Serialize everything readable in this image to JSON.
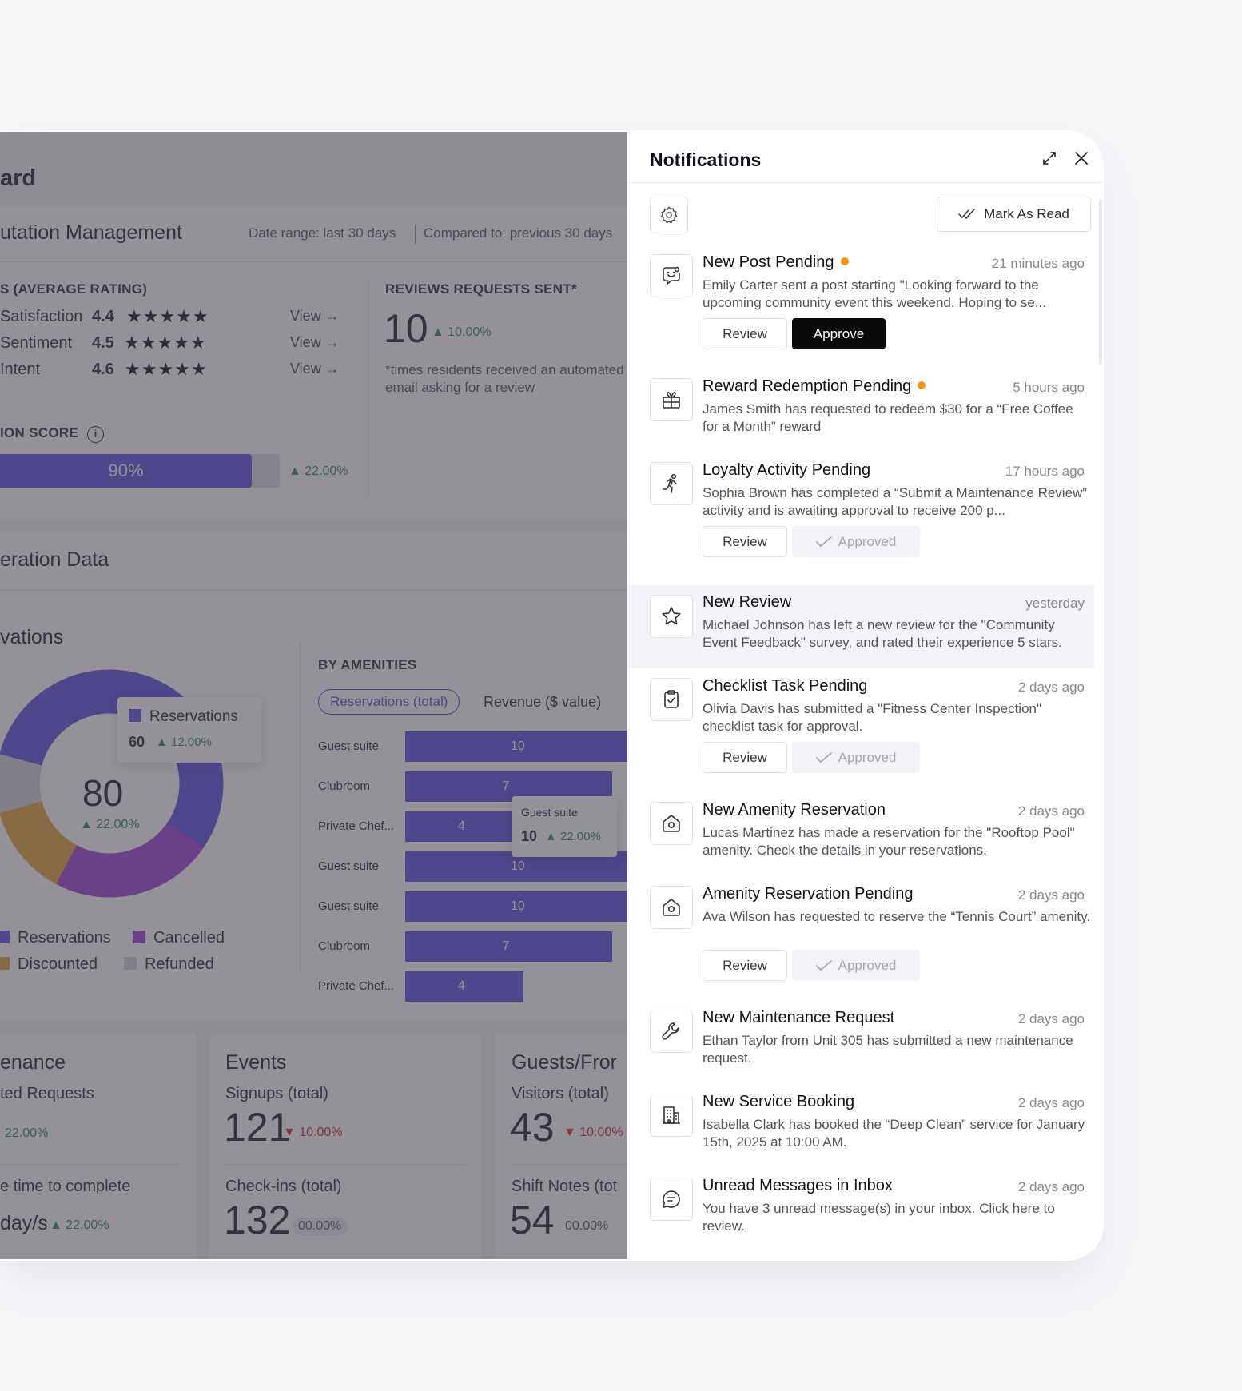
{
  "dashboard": {
    "title_fragment": "ard",
    "section_reputation": "utation Management",
    "date_range": "Date range: last 30 days",
    "compared_to": "Compared to: previous 30 days",
    "ratings_heading": "S (AVERAGE RATING)",
    "ratings": [
      {
        "label": "Satisfaction",
        "value": "4.4",
        "stars": "★★★★★",
        "link": "View"
      },
      {
        "label": "Sentiment",
        "value": "4.5",
        "stars": "★★★★★",
        "link": "View"
      },
      {
        "label": "Intent",
        "value": "4.6",
        "stars": "★★★★★",
        "link": "View"
      }
    ],
    "reviews_heading": "REVIEWS REQUESTS SENT*",
    "reviews_value": "10",
    "reviews_delta": "▲ 10.00%",
    "reviews_note": "*times residents received an automated email asking for a review",
    "score_heading": "ION SCORE",
    "score_percent": "90%",
    "score_fill": 0.9,
    "score_delta": "▲ 22.00%",
    "section_operation": "eration Data",
    "reservations_title": "vations",
    "donut": {
      "center_value": "80",
      "center_delta": "▲ 22.00%",
      "tooltip_label": "Reservations",
      "tooltip_value": "60",
      "tooltip_delta": "▲ 12.00%",
      "legend": [
        {
          "label": "Reservations",
          "color": "#5a4fe0"
        },
        {
          "label": "Cancelled",
          "color": "#9b3fd6"
        },
        {
          "label": "Discounted",
          "color": "#e3a23a"
        },
        {
          "label": "Refunded",
          "color": "#d4d3d8"
        }
      ]
    },
    "amenities": {
      "heading": "BY AMENITIES",
      "tab_active": "Reservations (total)",
      "tab_other": "Revenue ($ value)",
      "tooltip_label": "Guest suite",
      "tooltip_value": "10",
      "tooltip_delta": "▲ 22.00%"
    },
    "maintenance": {
      "title": "enance",
      "label": "ted Requests",
      "delta": "22.00%",
      "label2": "e time to complete",
      "value2": "day/s",
      "delta2": "▲ 22.00%"
    },
    "events": {
      "title": "Events",
      "label1": "Signups (total)",
      "value1": "121",
      "delta1": "▼ 10.00%",
      "label2": "Check-ins (total)",
      "value2": "132",
      "delta2": "00.00%"
    },
    "guests": {
      "title": "Guests/Fror",
      "label1": "Visitors (total)",
      "value1": "43",
      "delta1": "▼ 10.00%",
      "label2": "Shift Notes (tot",
      "value2": "54",
      "delta2": "00.00%"
    }
  },
  "chart_data": {
    "type": "bar",
    "categories": [
      "Guest suite",
      "Clubroom",
      "Private Chef...",
      "Guest suite",
      "Guest suite",
      "Clubroom",
      "Private Chef..."
    ],
    "values": [
      10,
      7,
      4,
      10,
      10,
      7,
      4
    ],
    "xlim": [
      0,
      10
    ]
  },
  "notifications": {
    "title": "Notifications",
    "mark_as_read": "Mark As Read",
    "items": [
      {
        "title": "New Post Pending",
        "unread": true,
        "time": "21 minutes ago",
        "text": "Emily Carter sent a post starting \"Looking forward to the upcoming community event this weekend. Hoping to se...",
        "icon": "post-icon",
        "review": "Review",
        "approve": "Approve"
      },
      {
        "title": "Reward Redemption Pending",
        "unread": true,
        "time": "5 hours ago",
        "text": "James Smith has requested to redeem $30 for a “Free Coffee for a Month” reward",
        "icon": "gift-icon"
      },
      {
        "title": "Loyalty Activity Pending",
        "time": "17 hours ago",
        "text": "Sophia Brown has completed a “Submit a Maintenance Review” activity and is awaiting approval to receive 200 p...",
        "icon": "running-icon",
        "review": "Review",
        "approved": "Approved"
      },
      {
        "title": "New Review",
        "time": "yesterday",
        "text": "Michael Johnson has left a new review for the \"Community Event Feedback\" survey, and rated their experience 5 stars.",
        "icon": "star-icon"
      },
      {
        "title": "Checklist Task Pending",
        "time": "2 days ago",
        "text": "Olivia Davis has submitted a \"Fitness Center Inspection\" checklist task for approval.",
        "icon": "clipboard-check-icon",
        "review": "Review",
        "approved": "Approved"
      },
      {
        "title": "New Amenity Reservation",
        "time": "2 days ago",
        "text": "Lucas Martinez has made a reservation for the \"Rooftop Pool\" amenity. Check the details in your reservations.",
        "icon": "home-icon"
      },
      {
        "title": "Amenity Reservation Pending",
        "time": "2 days ago",
        "text": "Ava Wilson has requested to reserve the “Tennis Court” amenity.",
        "icon": "home-icon",
        "review": "Review",
        "approved": "Approved"
      },
      {
        "title": "New Maintenance Request",
        "time": "2 days ago",
        "text": "Ethan Taylor from Unit 305 has submitted a new maintenance request.",
        "icon": "wrench-icon"
      },
      {
        "title": "New Service Booking",
        "time": "2 days ago",
        "text": "Isabella Clark has booked the “Deep Clean” service for January 15th, 2025 at 10:00 AM.",
        "icon": "building-icon"
      },
      {
        "title": "Unread Messages in Inbox",
        "time": "2 days ago",
        "text": "You have 3 unread message(s) in your inbox. Click here to review.",
        "icon": "message-icon"
      }
    ]
  }
}
